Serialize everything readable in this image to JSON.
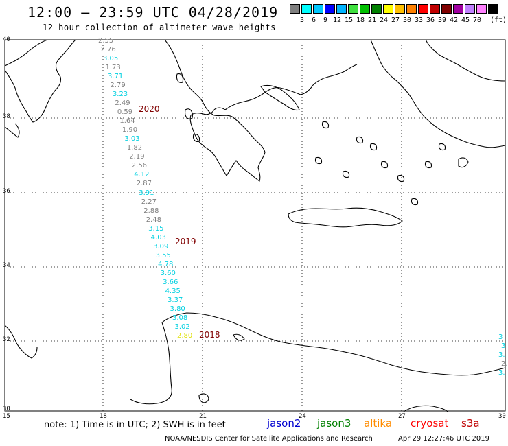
{
  "header": {
    "title": "12:00 – 23:59 UTC 04/28/2019",
    "subtitle": "12 hour collection of altimeter wave heights"
  },
  "legend": {
    "colors": [
      "#7f7f7f",
      "#00ffff",
      "#00c8ff",
      "#0000ff",
      "#00b4ff",
      "#40e040",
      "#00c000",
      "#008000",
      "#ffff00",
      "#ffc000",
      "#ff8000",
      "#ff0000",
      "#c00000",
      "#800000",
      "#a000a0",
      "#c080ff",
      "#ff80ff",
      "#000000"
    ],
    "labels": [
      "3",
      "6",
      "9",
      "12",
      "15",
      "18",
      "21",
      "24",
      "27",
      "30",
      "33",
      "36",
      "39",
      "42",
      "45",
      "70"
    ],
    "unit": "(ft)"
  },
  "axes": {
    "lat_labels": [
      "40",
      "38",
      "36",
      "34",
      "32",
      "30"
    ],
    "lon_labels": [
      "15",
      "18",
      "21",
      "24",
      "27",
      "30"
    ]
  },
  "tracks": [
    {
      "label": "2020",
      "lines": [
        {
          "v": "2.55",
          "c": "#7f7f7f"
        },
        {
          "v": "2.76",
          "c": "#7f7f7f"
        },
        {
          "v": "3.05",
          "c": "#00d0e0"
        },
        {
          "v": "1.73",
          "c": "#7f7f7f"
        },
        {
          "v": "3.71",
          "c": "#00d0e0"
        },
        {
          "v": "2.79",
          "c": "#7f7f7f"
        },
        {
          "v": "3.23",
          "c": "#00d0e0"
        },
        {
          "v": "2.49",
          "c": "#7f7f7f"
        },
        {
          "v": "0.59",
          "c": "#7f7f7f"
        },
        {
          "v": "1.64",
          "c": "#7f7f7f"
        },
        {
          "v": "1.90",
          "c": "#7f7f7f"
        },
        {
          "v": "3.03",
          "c": "#00d0e0"
        },
        {
          "v": "1.82",
          "c": "#7f7f7f"
        },
        {
          "v": "2.19",
          "c": "#7f7f7f"
        },
        {
          "v": "2.56",
          "c": "#7f7f7f"
        },
        {
          "v": "4.12",
          "c": "#00d0e0"
        },
        {
          "v": "2.87",
          "c": "#7f7f7f"
        },
        {
          "v": "3.91",
          "c": "#00d0e0"
        },
        {
          "v": "2.27",
          "c": "#7f7f7f"
        },
        {
          "v": "2.88",
          "c": "#7f7f7f"
        },
        {
          "v": "2.48",
          "c": "#7f7f7f"
        },
        {
          "v": "3.15",
          "c": "#00d0e0"
        },
        {
          "v": "4.03",
          "c": "#00d0e0"
        },
        {
          "v": "3.09",
          "c": "#00d0e0"
        },
        {
          "v": "3.55",
          "c": "#00d0e0"
        },
        {
          "v": "4.78",
          "c": "#00d0e0"
        },
        {
          "v": "3.60",
          "c": "#00d0e0"
        },
        {
          "v": "3.66",
          "c": "#00d0e0"
        },
        {
          "v": "4.35",
          "c": "#00d0e0"
        },
        {
          "v": "3.37",
          "c": "#00d0e0"
        },
        {
          "v": "3.80",
          "c": "#00d0e0"
        },
        {
          "v": "3.08",
          "c": "#00d0e0"
        },
        {
          "v": "3.02",
          "c": "#00d0e0"
        },
        {
          "v": "2.80",
          "c": "#e0e000"
        }
      ]
    },
    {
      "label": "2019"
    },
    {
      "label": "2018"
    }
  ],
  "edge_track": [
    {
      "v": "3",
      "c": "#00d0e0"
    },
    {
      "v": "3",
      "c": "#00d0e0"
    },
    {
      "v": "3.",
      "c": "#00d0e0"
    },
    {
      "v": "2.",
      "c": "#7f7f7f"
    },
    {
      "v": "3.",
      "c": "#00d0e0"
    }
  ],
  "footer": {
    "note": "note: 1) Time is in UTC; 2) SWH is in feet",
    "satellites": [
      {
        "name": "jason2",
        "color": "#0000d0"
      },
      {
        "name": "jason3",
        "color": "#008000"
      },
      {
        "name": "altika",
        "color": "#ff8c00"
      },
      {
        "name": "cryosat",
        "color": "#ff0000"
      },
      {
        "name": "s3a",
        "color": "#c00000"
      }
    ],
    "credit": "NOAA/NESDIS Center for Satellite Applications and Research",
    "timestamp": "Apr 29 12:27:46 UTC 2019"
  }
}
